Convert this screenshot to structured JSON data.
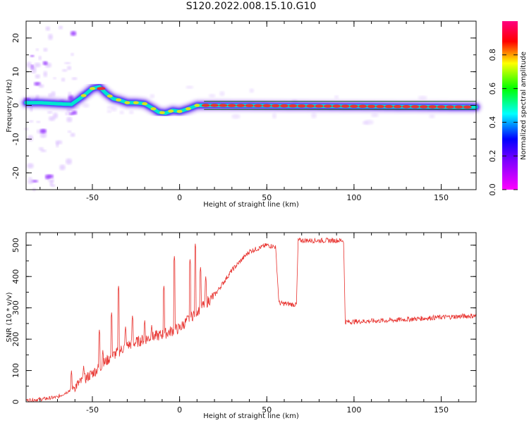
{
  "figure_title": "S120.2022.008.15.10.G10",
  "chart_data": [
    {
      "type": "heatmap",
      "xlabel": "Height of straight line (km)",
      "ylabel": "Frequency (Hz)",
      "xlim": [
        -88,
        170
      ],
      "ylim": [
        -25,
        25
      ],
      "xticks": [
        -50,
        0,
        50,
        100,
        150
      ],
      "yticks": [
        -20,
        -10,
        0,
        10,
        20
      ],
      "colorbar": {
        "label": "Normalized spectral amplitude",
        "range": [
          0,
          1
        ],
        "ticks": [
          0.0,
          0.2,
          0.4,
          0.6,
          0.8
        ]
      },
      "ridge": {
        "x": [
          -88,
          -80,
          -70,
          -62,
          -56,
          -50,
          -46,
          -42,
          -38,
          -34,
          -30,
          -25,
          -20,
          -15,
          -12,
          -8,
          -4,
          0,
          5,
          10,
          15,
          20,
          170
        ],
        "y": [
          0.8,
          0.8,
          0.5,
          0.3,
          2.5,
          5.0,
          5.5,
          3.5,
          2.0,
          1.5,
          0.8,
          0.8,
          0.5,
          -1.0,
          -2.0,
          -2.3,
          -1.5,
          -1.8,
          -1.0,
          0.0,
          0.0,
          0.0,
          -0.5
        ]
      },
      "grid": false
    },
    {
      "type": "line",
      "xlabel": "Height of straight line (km)",
      "ylabel": "SNR (10 * v/v)",
      "xlim": [
        -88,
        170
      ],
      "ylim": [
        0,
        540
      ],
      "xticks": [
        -50,
        0,
        50,
        100,
        150
      ],
      "yticks": [
        0,
        100,
        200,
        300,
        400,
        500
      ],
      "color": "#e8332f",
      "trend": {
        "x": [
          -88,
          -80,
          -70,
          -62,
          -55,
          -48,
          -40,
          -30,
          -20,
          -10,
          0,
          10,
          20,
          30,
          40,
          50,
          55,
          57,
          67,
          68,
          94,
          95,
          120,
          150,
          170
        ],
        "y": [
          5,
          8,
          15,
          40,
          70,
          100,
          140,
          180,
          200,
          215,
          235,
          290,
          340,
          420,
          480,
          500,
          495,
          315,
          310,
          515,
          515,
          255,
          260,
          270,
          275
        ]
      },
      "spikes": [
        {
          "x": -62,
          "y": 100
        },
        {
          "x": -55,
          "y": 115
        },
        {
          "x": -46,
          "y": 230
        },
        {
          "x": -44,
          "y": 165
        },
        {
          "x": -39,
          "y": 285
        },
        {
          "x": -35,
          "y": 370
        },
        {
          "x": -31,
          "y": 240
        },
        {
          "x": -27,
          "y": 275
        },
        {
          "x": -20,
          "y": 260
        },
        {
          "x": -16,
          "y": 245
        },
        {
          "x": -9,
          "y": 370
        },
        {
          "x": -3,
          "y": 465
        },
        {
          "x": 6,
          "y": 455
        },
        {
          "x": 9,
          "y": 505
        },
        {
          "x": 12,
          "y": 430
        },
        {
          "x": 15,
          "y": 400
        }
      ],
      "grid": false
    }
  ]
}
